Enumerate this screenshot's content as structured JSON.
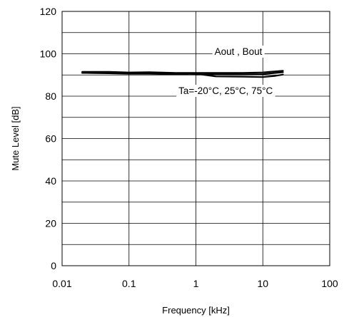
{
  "chart_data": {
    "type": "line",
    "title": "",
    "xlabel": "Frequency [kHz]",
    "ylabel": "Mute Level [dB]",
    "xscale": "log",
    "xlim": [
      0.01,
      100
    ],
    "ylim": [
      0,
      120
    ],
    "x_ticks": [
      0.01,
      0.1,
      1,
      10,
      100
    ],
    "x_tick_labels": [
      "0.01",
      "0.1",
      "1",
      "10",
      "100"
    ],
    "y_ticks": [
      0,
      20,
      40,
      60,
      80,
      100,
      120
    ],
    "y_tick_labels": [
      "0",
      "20",
      "40",
      "60",
      "80",
      "100",
      "120"
    ],
    "y_minor_grid": 10,
    "grid": true,
    "legend": "none",
    "colors": {
      "line": "#000000",
      "grid": "#000000",
      "background": "#ffffff"
    },
    "annotations": [
      {
        "text": "Aout , Bout",
        "x": 1.9,
        "y": 99.5
      },
      {
        "text": "Ta=-20°C, 25°C, 75°C",
        "x": 0.55,
        "y": 81
      }
    ],
    "series": [
      {
        "x": [
          0.02,
          0.05,
          0.1,
          0.2,
          0.5,
          1,
          2,
          5,
          10,
          20
        ],
        "y": [
          91.5,
          91.5,
          91.2,
          91.3,
          91.0,
          91.0,
          91.0,
          91.0,
          91.2,
          92.0
        ]
      },
      {
        "x": [
          0.02,
          0.05,
          0.1,
          0.2,
          0.5,
          0.7,
          1,
          2,
          5,
          10,
          20
        ],
        "y": [
          91.0,
          91.0,
          90.8,
          91.0,
          90.6,
          90.9,
          90.2,
          90.5,
          90.3,
          90.4,
          91.3
        ]
      },
      {
        "x": [
          0.02,
          0.05,
          0.1,
          0.2,
          0.5,
          1,
          2,
          5,
          10,
          15,
          20
        ],
        "y": [
          91.0,
          90.8,
          90.6,
          90.6,
          90.3,
          90.6,
          89.3,
          89.2,
          89.0,
          89.5,
          90.2
        ]
      }
    ]
  }
}
